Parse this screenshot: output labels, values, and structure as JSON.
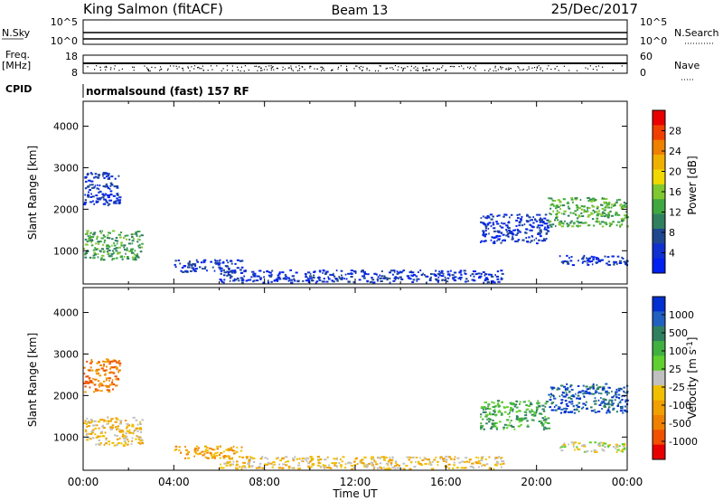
{
  "header": {
    "station": "King Salmon (fitACF)",
    "beam": "Beam 13",
    "date": "25/Dec/2017"
  },
  "aux_panels": {
    "nsky_label": "N.Sky",
    "nsky_ticks": [
      "10^5",
      "10^0"
    ],
    "nsearch_label": "N.Search",
    "nsearch_ticks": [
      "10^5",
      "10^0"
    ],
    "freq_label": "Freq.",
    "freq_unit": "[MHz]",
    "freq_ticks": [
      "18",
      "8"
    ],
    "nave_label": "Nave",
    "nave_ticks": [
      "60",
      "0"
    ],
    "cpid_label": "CPID",
    "cpid_text": "normalsound (fast) 157 RF"
  },
  "chart_data": [
    {
      "type": "heatmap",
      "name": "power",
      "ylabel": "Slant Range [km]",
      "xlabel": "",
      "yticks": [
        "4000",
        "3000",
        "2000",
        "1000"
      ],
      "ylim": [
        200,
        4600
      ],
      "xlim_hours": [
        0,
        24
      ],
      "colorbar": {
        "label": "Power [dB]",
        "ticks": [
          "28",
          "24",
          "20",
          "16",
          "12",
          "8",
          "4"
        ],
        "colors": [
          "#e80000",
          "#f04000",
          "#f08000",
          "#f0b000",
          "#f0d800",
          "#80c830",
          "#40a840",
          "#308060",
          "#204890",
          "#1030d0",
          "#0020f0"
        ]
      },
      "regions": [
        {
          "x": [
            0.0,
            2.6
          ],
          "y": [
            800,
            1500
          ],
          "color_index": 6
        },
        {
          "x": [
            0.0,
            1.6
          ],
          "y": [
            2100,
            2900
          ],
          "color_index": 9
        },
        {
          "x": [
            4.0,
            7.0
          ],
          "y": [
            500,
            800
          ],
          "color_index": 9
        },
        {
          "x": [
            6.0,
            18.5
          ],
          "y": [
            250,
            550
          ],
          "color_index": 9
        },
        {
          "x": [
            17.5,
            20.5
          ],
          "y": [
            1200,
            1900
          ],
          "color_index": 9
        },
        {
          "x": [
            20.5,
            24.0
          ],
          "y": [
            1600,
            2300
          ],
          "color_index": 6
        },
        {
          "x": [
            21.0,
            24.0
          ],
          "y": [
            650,
            900
          ],
          "color_index": 9
        }
      ]
    },
    {
      "type": "heatmap",
      "name": "velocity",
      "ylabel": "Slant Range [km]",
      "xlabel": "Time UT",
      "yticks": [
        "4000",
        "3000",
        "2000",
        "1000"
      ],
      "ylim": [
        200,
        4600
      ],
      "xlim_hours": [
        0,
        24
      ],
      "xticks": [
        "00:00",
        "04:00",
        "08:00",
        "12:00",
        "16:00",
        "20:00",
        "00:00"
      ],
      "colorbar": {
        "label": "Velocity [m s",
        "label_sup": "-1",
        "label_close": "]",
        "ticks": [
          "1000",
          "500",
          "100",
          "25",
          "-25",
          "-100",
          "-500",
          "-1000"
        ],
        "colors": [
          "#0030d0",
          "#2060c0",
          "#308060",
          "#40b040",
          "#60d030",
          "#c0c0c0",
          "#f0c000",
          "#f0a000",
          "#f08000",
          "#f05000",
          "#e80000"
        ]
      },
      "regions": [
        {
          "x": [
            0.0,
            2.6
          ],
          "y": [
            800,
            1500
          ],
          "color_index": 6
        },
        {
          "x": [
            0.0,
            1.6
          ],
          "y": [
            2100,
            2900
          ],
          "color_index": 8
        },
        {
          "x": [
            4.0,
            7.0
          ],
          "y": [
            500,
            800
          ],
          "color_index": 7
        },
        {
          "x": [
            6.0,
            18.5
          ],
          "y": [
            250,
            550
          ],
          "color_index": 6
        },
        {
          "x": [
            17.5,
            20.5
          ],
          "y": [
            1200,
            1900
          ],
          "color_index": 3
        },
        {
          "x": [
            20.5,
            24.0
          ],
          "y": [
            1600,
            2300
          ],
          "color_index": 1
        },
        {
          "x": [
            21.0,
            24.0
          ],
          "y": [
            650,
            900
          ],
          "color_index": 5
        }
      ]
    }
  ]
}
